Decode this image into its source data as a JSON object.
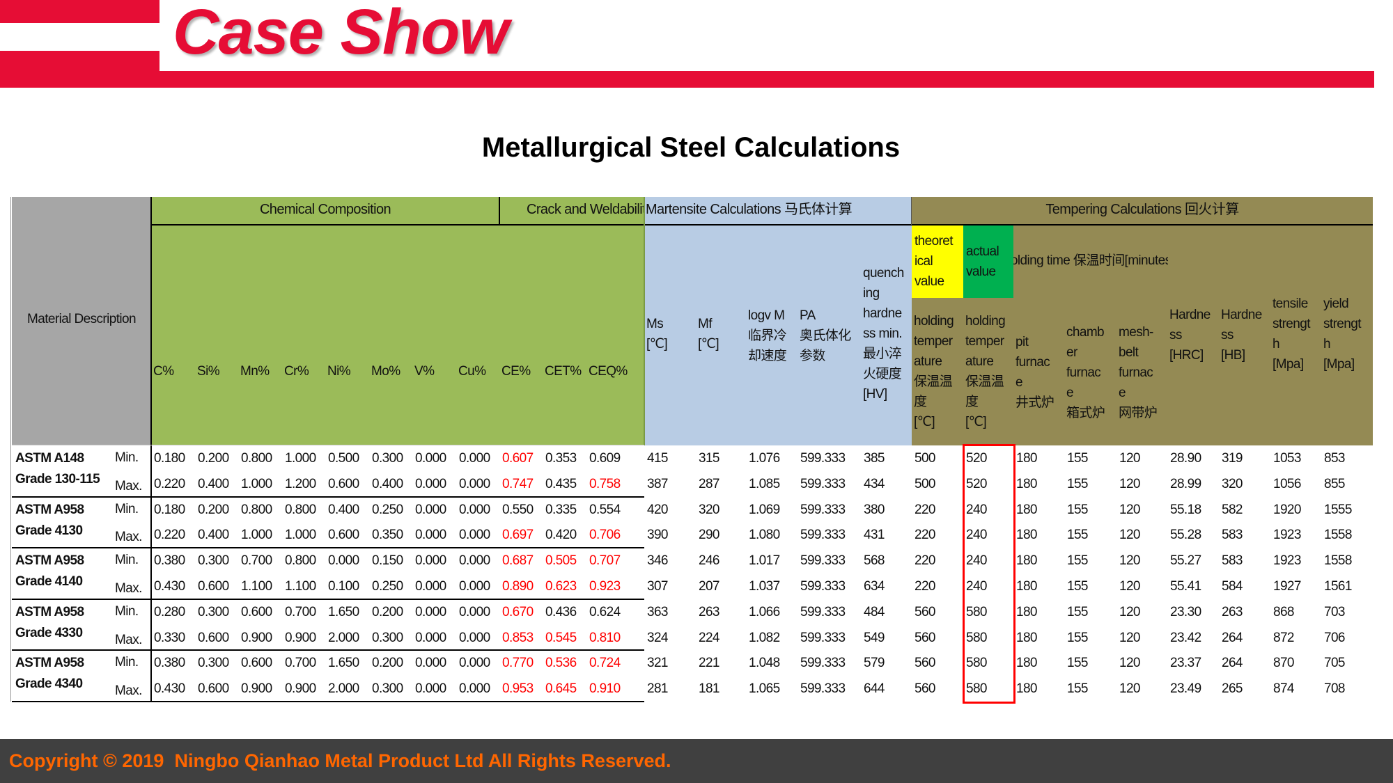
{
  "header": {
    "logo_text": "Case Show",
    "brand_color": "#e60d35"
  },
  "title": "Metallurgical Steel Calculations",
  "table": {
    "group_headers": {
      "material": "Material Description",
      "chemical": "Chemical Composition",
      "crack": "Crack and Weldability",
      "martensite": "Martensite Calculations 马氏体计算",
      "tempering": "Tempering Calculations 回火计算",
      "holding_time": "holding time 保温时间[minutes]"
    },
    "columns": [
      "C%",
      "Si%",
      "Mn%",
      "Cr%",
      "Ni%",
      "Mo%",
      "V%",
      "Cu%",
      "CE%",
      "CET%",
      "CEQ%",
      "Ms\n[℃]",
      "Mf\n[℃]",
      "logv M\n临界冷\n却速度",
      "PA\n奥氏体化\n参数",
      "quench\ning\nhardne\nss min.\n最小淬\n火硬度\n[HV]",
      "holding\ntemper\nature\n保温温\n度\n[℃]",
      "holding\ntemper\nature\n保温温\n度\n[℃]",
      "pit\nfurnac\ne\n井式炉",
      "chamb\ner\nfurnac\ne\n箱式炉",
      "mesh-\nbelt\nfurnac\ne\n网带炉",
      "Hardne\nss\n[HRC]",
      "Hardne\nss\n[HB]",
      "tensile\nstrengt\nh\n[Mpa]",
      "yield\nstrengt\nh\n[Mpa]"
    ],
    "theoretical_label": "theoret\nical\nvalue",
    "actual_label": "actual\nvalue",
    "colors": {
      "material_bg": "#a6a6a6",
      "chemical_bg": "#9bbb59",
      "martensite_bg": "#b8cce4",
      "tempering_bg": "#948a54",
      "theoretical_bg": "#ffff00",
      "actual_bg": "#00b050",
      "alert_text": "#ff0000",
      "highlight_box": "#ff0000"
    },
    "highlighted_column": "actual value",
    "materials": [
      {
        "name": [
          "ASTM A148",
          "Grade 130-115"
        ],
        "rows": [
          {
            "label": "Min.",
            "values": [
              "0.180",
              "0.200",
              "0.800",
              "1.000",
              "0.500",
              "0.300",
              "0.000",
              "0.000",
              "0.607",
              "0.353",
              "0.609",
              "415",
              "315",
              "1.076",
              "599.333",
              "385",
              "500",
              "520",
              "180",
              "155",
              "120",
              "28.90",
              "319",
              "1053",
              "853"
            ],
            "red": [
              8
            ]
          },
          {
            "label": "Max.",
            "values": [
              "0.220",
              "0.400",
              "1.000",
              "1.200",
              "0.600",
              "0.400",
              "0.000",
              "0.000",
              "0.747",
              "0.435",
              "0.758",
              "387",
              "287",
              "1.085",
              "599.333",
              "434",
              "500",
              "520",
              "180",
              "155",
              "120",
              "28.99",
              "320",
              "1056",
              "855"
            ],
            "red": [
              8,
              10
            ]
          }
        ]
      },
      {
        "name": [
          "ASTM A958",
          "Grade 4130"
        ],
        "rows": [
          {
            "label": "Min.",
            "values": [
              "0.180",
              "0.200",
              "0.800",
              "0.800",
              "0.400",
              "0.250",
              "0.000",
              "0.000",
              "0.550",
              "0.335",
              "0.554",
              "420",
              "320",
              "1.069",
              "599.333",
              "380",
              "220",
              "240",
              "180",
              "155",
              "120",
              "55.18",
              "582",
              "1920",
              "1555"
            ],
            "red": []
          },
          {
            "label": "Max.",
            "values": [
              "0.220",
              "0.400",
              "1.000",
              "1.000",
              "0.600",
              "0.350",
              "0.000",
              "0.000",
              "0.697",
              "0.420",
              "0.706",
              "390",
              "290",
              "1.080",
              "599.333",
              "431",
              "220",
              "240",
              "180",
              "155",
              "120",
              "55.28",
              "583",
              "1923",
              "1558"
            ],
            "red": [
              8,
              10
            ]
          }
        ]
      },
      {
        "name": [
          "ASTM A958",
          "Grade 4140"
        ],
        "rows": [
          {
            "label": "Min.",
            "values": [
              "0.380",
              "0.300",
              "0.700",
              "0.800",
              "0.000",
              "0.150",
              "0.000",
              "0.000",
              "0.687",
              "0.505",
              "0.707",
              "346",
              "246",
              "1.017",
              "599.333",
              "568",
              "220",
              "240",
              "180",
              "155",
              "120",
              "55.27",
              "583",
              "1923",
              "1558"
            ],
            "red": [
              8,
              9,
              10
            ]
          },
          {
            "label": "Max.",
            "values": [
              "0.430",
              "0.600",
              "1.100",
              "1.100",
              "0.100",
              "0.250",
              "0.000",
              "0.000",
              "0.890",
              "0.623",
              "0.923",
              "307",
              "207",
              "1.037",
              "599.333",
              "634",
              "220",
              "240",
              "180",
              "155",
              "120",
              "55.41",
              "584",
              "1927",
              "1561"
            ],
            "red": [
              8,
              9,
              10
            ]
          }
        ]
      },
      {
        "name": [
          "ASTM A958",
          "Grade 4330"
        ],
        "rows": [
          {
            "label": "Min.",
            "values": [
              "0.280",
              "0.300",
              "0.600",
              "0.700",
              "1.650",
              "0.200",
              "0.000",
              "0.000",
              "0.670",
              "0.436",
              "0.624",
              "363",
              "263",
              "1.066",
              "599.333",
              "484",
              "560",
              "580",
              "180",
              "155",
              "120",
              "23.30",
              "263",
              "868",
              "703"
            ],
            "red": [
              8
            ]
          },
          {
            "label": "Max.",
            "values": [
              "0.330",
              "0.600",
              "0.900",
              "0.900",
              "2.000",
              "0.300",
              "0.000",
              "0.000",
              "0.853",
              "0.545",
              "0.810",
              "324",
              "224",
              "1.082",
              "599.333",
              "549",
              "560",
              "580",
              "180",
              "155",
              "120",
              "23.42",
              "264",
              "872",
              "706"
            ],
            "red": [
              8,
              9,
              10
            ]
          }
        ]
      },
      {
        "name": [
          "ASTM A958",
          "Grade 4340"
        ],
        "rows": [
          {
            "label": "Min.",
            "values": [
              "0.380",
              "0.300",
              "0.600",
              "0.700",
              "1.650",
              "0.200",
              "0.000",
              "0.000",
              "0.770",
              "0.536",
              "0.724",
              "321",
              "221",
              "1.048",
              "599.333",
              "579",
              "560",
              "580",
              "180",
              "155",
              "120",
              "23.37",
              "264",
              "870",
              "705"
            ],
            "red": [
              8,
              9,
              10
            ]
          },
          {
            "label": "Max.",
            "values": [
              "0.430",
              "0.600",
              "0.900",
              "0.900",
              "2.000",
              "0.300",
              "0.000",
              "0.000",
              "0.953",
              "0.645",
              "0.910",
              "281",
              "181",
              "1.065",
              "599.333",
              "644",
              "560",
              "580",
              "180",
              "155",
              "120",
              "23.49",
              "265",
              "874",
              "708"
            ],
            "red": [
              8,
              9,
              10
            ]
          }
        ]
      }
    ]
  },
  "footer": {
    "copyright": "Copyright © 2019  Ningbo Qianhao Metal Product Ltd All Rights Reserved."
  }
}
